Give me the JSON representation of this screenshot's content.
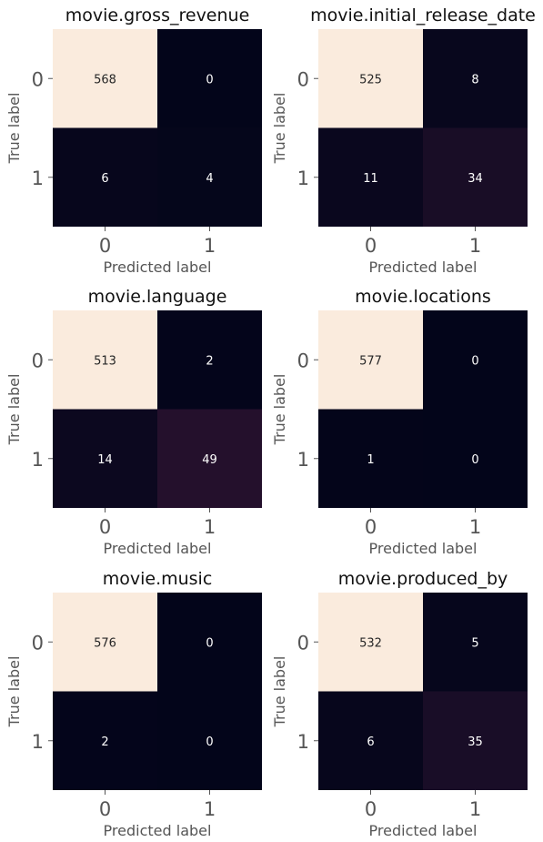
{
  "colors": {
    "scale": [
      "#03051a",
      "#faebdd"
    ],
    "text_dark": "#262626",
    "text_light": "#ffffff"
  },
  "chart_data": [
    {
      "type": "heatmap",
      "title": "movie.gross_revenue",
      "xlabel": "Predicted label",
      "ylabel": "True label",
      "x_ticks": [
        "0",
        "1"
      ],
      "y_ticks": [
        "0",
        "1"
      ],
      "matrix": [
        [
          568,
          0
        ],
        [
          6,
          4
        ]
      ]
    },
    {
      "type": "heatmap",
      "title": "movie.initial_release_date",
      "xlabel": "Predicted label",
      "ylabel": "True label",
      "x_ticks": [
        "0",
        "1"
      ],
      "y_ticks": [
        "0",
        "1"
      ],
      "matrix": [
        [
          525,
          8
        ],
        [
          11,
          34
        ]
      ]
    },
    {
      "type": "heatmap",
      "title": "movie.language",
      "xlabel": "Predicted label",
      "ylabel": "True label",
      "x_ticks": [
        "0",
        "1"
      ],
      "y_ticks": [
        "0",
        "1"
      ],
      "matrix": [
        [
          513,
          2
        ],
        [
          14,
          49
        ]
      ]
    },
    {
      "type": "heatmap",
      "title": "movie.locations",
      "xlabel": "Predicted label",
      "ylabel": "True label",
      "x_ticks": [
        "0",
        "1"
      ],
      "y_ticks": [
        "0",
        "1"
      ],
      "matrix": [
        [
          577,
          0
        ],
        [
          1,
          0
        ]
      ]
    },
    {
      "type": "heatmap",
      "title": "movie.music",
      "xlabel": "Predicted label",
      "ylabel": "True label",
      "x_ticks": [
        "0",
        "1"
      ],
      "y_ticks": [
        "0",
        "1"
      ],
      "matrix": [
        [
          576,
          0
        ],
        [
          2,
          0
        ]
      ]
    },
    {
      "type": "heatmap",
      "title": "movie.produced_by",
      "xlabel": "Predicted label",
      "ylabel": "True label",
      "x_ticks": [
        "0",
        "1"
      ],
      "y_ticks": [
        "0",
        "1"
      ],
      "matrix": [
        [
          532,
          5
        ],
        [
          6,
          35
        ]
      ]
    }
  ]
}
